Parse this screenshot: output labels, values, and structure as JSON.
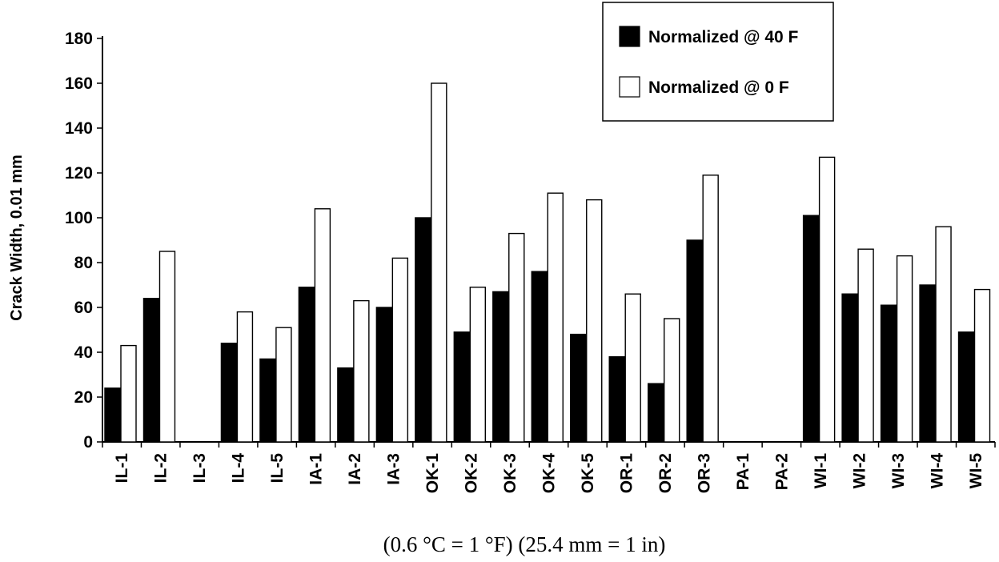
{
  "chart_data": {
    "type": "bar",
    "title": "",
    "ylabel": "Crack Width, 0.01 mm",
    "xlabel": "(0.6 °C = 1 °F) (25.4 mm = 1 in)",
    "ylim": [
      0,
      180
    ],
    "yticks": [
      0,
      20,
      40,
      60,
      80,
      100,
      120,
      140,
      160,
      180
    ],
    "grid": false,
    "legend_position": "top-right",
    "categories": [
      "IL-1",
      "IL-2",
      "IL-3",
      "IL-4",
      "IL-5",
      "IA-1",
      "IA-2",
      "IA-3",
      "OK-1",
      "OK-2",
      "OK-3",
      "OK-4",
      "OK-5",
      "OR-1",
      "OR-2",
      "OR-3",
      "PA-1",
      "PA-2",
      "WI-1",
      "WI-2",
      "WI-3",
      "WI-4",
      "WI-5"
    ],
    "series": [
      {
        "name": "Normalized @ 40 F",
        "color": "#000000",
        "values": [
          24,
          64,
          null,
          44,
          37,
          69,
          33,
          60,
          100,
          49,
          67,
          76,
          48,
          38,
          26,
          90,
          null,
          null,
          101,
          66,
          61,
          70,
          49
        ]
      },
      {
        "name": "Normalized @ 0 F",
        "color": "#ffffff",
        "values": [
          43,
          85,
          null,
          58,
          51,
          104,
          63,
          82,
          160,
          69,
          93,
          111,
          108,
          66,
          55,
          119,
          null,
          null,
          127,
          86,
          83,
          96,
          68
        ]
      }
    ]
  }
}
